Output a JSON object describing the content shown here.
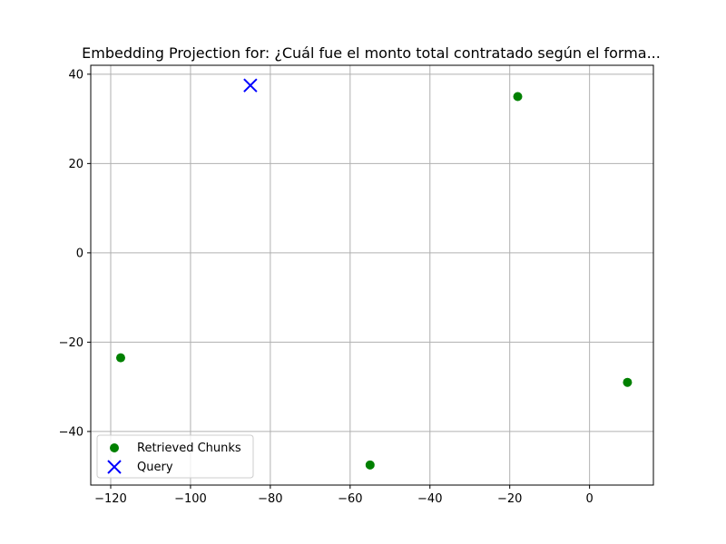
{
  "chart_data": {
    "type": "scatter",
    "title": "Embedding Projection for: ¿Cuál fue el monto total contratado según el forma...",
    "xlabel": "",
    "ylabel": "",
    "xlim": [
      -125,
      16
    ],
    "ylim": [
      -52,
      42
    ],
    "x_ticks": [
      -120,
      -100,
      -80,
      -60,
      -40,
      -20,
      0
    ],
    "y_ticks": [
      -40,
      -20,
      0,
      20,
      40
    ],
    "x_tick_labels": [
      "−120",
      "−100",
      "−80",
      "−60",
      "−40",
      "−20",
      "0"
    ],
    "y_tick_labels": [
      "−40",
      "−20",
      "0",
      "20",
      "40"
    ],
    "grid": true,
    "legend_position": "lower-left",
    "series": [
      {
        "name": "Retrieved Chunks",
        "marker": "circle",
        "color": "#008000",
        "points": [
          {
            "x": -18,
            "y": 35
          },
          {
            "x": -117.5,
            "y": -23.5
          },
          {
            "x": -55,
            "y": -47.5
          },
          {
            "x": 9.5,
            "y": -29
          }
        ]
      },
      {
        "name": "Query",
        "marker": "x",
        "color": "#0000ff",
        "points": [
          {
            "x": -85,
            "y": 37.5
          }
        ]
      }
    ]
  }
}
